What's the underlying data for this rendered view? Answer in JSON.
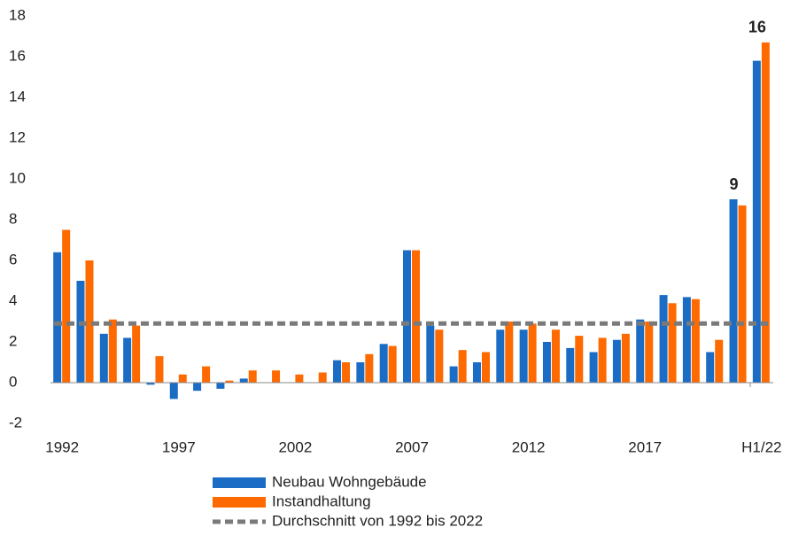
{
  "chart_data": {
    "type": "bar",
    "categories": [
      "1992",
      null,
      null,
      null,
      null,
      "1997",
      null,
      null,
      null,
      null,
      "2002",
      null,
      null,
      null,
      null,
      "2007",
      null,
      null,
      null,
      null,
      "2012",
      null,
      null,
      null,
      null,
      "2017",
      null,
      null,
      null,
      null,
      "H1/22"
    ],
    "series": [
      {
        "name": "Neubau Wohngebäude",
        "color": "#1a6cc4",
        "values": [
          6.4,
          5.0,
          2.4,
          2.2,
          -0.1,
          -0.8,
          -0.4,
          -0.3,
          0.2,
          0,
          0,
          0,
          1.1,
          1.0,
          1.9,
          6.5,
          2.8,
          0.8,
          1.0,
          2.6,
          2.6,
          2.0,
          1.7,
          1.5,
          2.1,
          3.1,
          4.3,
          4.2,
          1.5,
          9.0,
          15.8
        ],
        "value_labels": [
          null,
          null,
          null,
          null,
          null,
          null,
          null,
          null,
          null,
          null,
          null,
          null,
          null,
          null,
          null,
          null,
          null,
          null,
          null,
          null,
          null,
          null,
          null,
          null,
          null,
          null,
          null,
          null,
          null,
          "9",
          "16"
        ]
      },
      {
        "name": "Instandhaltung",
        "color": "#ff6a00",
        "values": [
          7.5,
          6.0,
          3.1,
          2.8,
          1.3,
          0.4,
          0.8,
          0.1,
          0.6,
          0.6,
          0.4,
          0.5,
          1.0,
          1.4,
          1.8,
          6.5,
          2.6,
          1.6,
          1.5,
          3.0,
          2.9,
          2.6,
          2.3,
          2.2,
          2.4,
          3.0,
          3.9,
          4.1,
          2.1,
          8.7,
          16.7
        ]
      }
    ],
    "reference_line": {
      "name": "Durchschnitt von 1992 bis 2022",
      "value": 2.9,
      "color": "#7a7a7a"
    },
    "ylim": [
      -2,
      18
    ],
    "yticks": [
      -2,
      0,
      2,
      4,
      6,
      8,
      10,
      12,
      14,
      16,
      18
    ],
    "grid": false
  }
}
